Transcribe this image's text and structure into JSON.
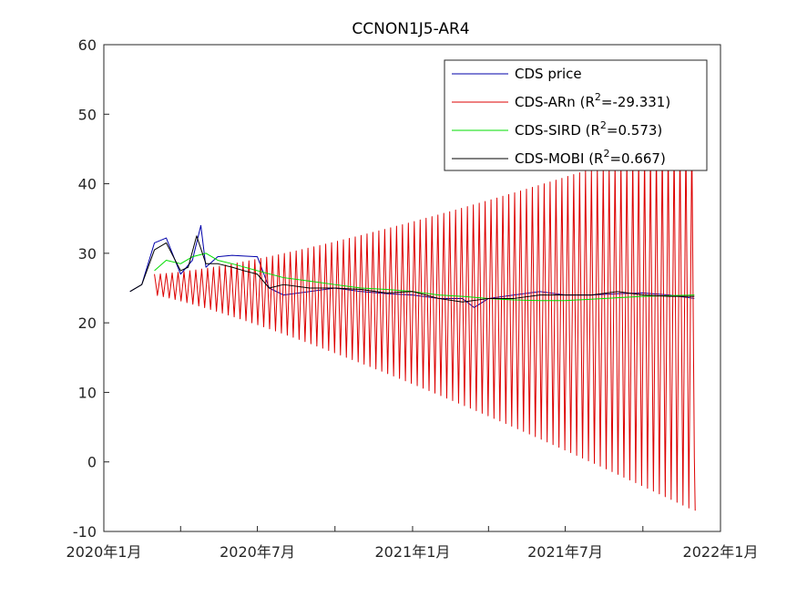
{
  "chart_data": {
    "type": "line",
    "title": "CCNON1J5-AR4",
    "xlabel": "",
    "ylabel": "",
    "xlim": [
      "2020-01-01",
      "2022-01-01"
    ],
    "ylim": [
      -10,
      60
    ],
    "x_ticks": [
      "2020-01-01",
      "2020-04-01",
      "2020-07-01",
      "2020-10-01",
      "2021-01-01",
      "2021-04-01",
      "2021-07-01",
      "2021-10-01",
      "2022-01-01"
    ],
    "x_tick_labels": [
      "2020年1月",
      "",
      "2020年7月",
      "",
      "2021年1月",
      "",
      "2021年7月",
      "",
      "2022年1月"
    ],
    "y_ticks": [
      -10,
      0,
      10,
      20,
      30,
      40,
      50,
      60
    ],
    "y_tick_labels": [
      "-10",
      "0",
      "10",
      "20",
      "30",
      "40",
      "50",
      "60"
    ],
    "legend_position": "top-right",
    "grid": false,
    "series": [
      {
        "name": "CDS price",
        "legend_main": "CDS price",
        "legend_r2": "",
        "legend_r2_value": "",
        "color": "#0000aa",
        "x": [
          "2020-02-01",
          "2020-02-15",
          "2020-03-01",
          "2020-03-15",
          "2020-04-01",
          "2020-04-15",
          "2020-04-25",
          "2020-05-01",
          "2020-05-15",
          "2020-06-01",
          "2020-06-15",
          "2020-07-01",
          "2020-07-15",
          "2020-08-01",
          "2020-09-01",
          "2020-10-01",
          "2020-11-01",
          "2020-12-01",
          "2021-01-01",
          "2021-02-01",
          "2021-03-01",
          "2021-03-15",
          "2021-04-01",
          "2021-05-01",
          "2021-06-01",
          "2021-07-01",
          "2021-08-01",
          "2021-09-01",
          "2021-10-01",
          "2021-11-01",
          "2021-12-01"
        ],
        "y": [
          24.5,
          25.5,
          31.5,
          32.2,
          27.0,
          29.0,
          34.0,
          28.0,
          29.5,
          29.7,
          29.6,
          29.5,
          25.0,
          24.0,
          24.5,
          25.0,
          24.5,
          24.2,
          24.0,
          23.5,
          23.5,
          22.2,
          23.5,
          24.0,
          24.5,
          24.0,
          24.0,
          24.2,
          24.3,
          24.0,
          23.5
        ]
      },
      {
        "name": "CDS-ARn",
        "legend_main": "CDS-ARn   (R",
        "legend_r2": "2",
        "legend_r2_value": "=-29.331)",
        "color": "#dd0000",
        "start": "2020-03-01",
        "end": "2021-12-01",
        "period_days": 7,
        "center_start": 25.5,
        "center_end": 20.0,
        "amplitude_start": 1.5,
        "amplitude_end": 27.0,
        "final_value": -7.0
      },
      {
        "name": "CDS-SIRD",
        "legend_main": "CDS-SIRD (R",
        "legend_r2": "2",
        "legend_r2_value": "=0.573)",
        "color": "#00dd00",
        "x": [
          "2020-03-01",
          "2020-03-15",
          "2020-04-01",
          "2020-04-15",
          "2020-05-01",
          "2020-05-15",
          "2020-06-01",
          "2020-07-01",
          "2020-08-01",
          "2020-09-01",
          "2020-10-01",
          "2020-11-01",
          "2020-12-01",
          "2021-01-01",
          "2021-02-01",
          "2021-03-01",
          "2021-04-01",
          "2021-05-01",
          "2021-06-01",
          "2021-07-01",
          "2021-08-01",
          "2021-09-01",
          "2021-10-01",
          "2021-11-01",
          "2021-12-01"
        ],
        "y": [
          27.5,
          29.0,
          28.5,
          29.5,
          30.0,
          29.0,
          28.5,
          27.5,
          26.5,
          26.0,
          25.5,
          25.0,
          24.8,
          24.5,
          24.0,
          23.8,
          23.5,
          23.3,
          23.2,
          23.2,
          23.4,
          23.6,
          23.8,
          23.9,
          24.0
        ]
      },
      {
        "name": "CDS-MOBI",
        "legend_main": "CDS-MOBI (R",
        "legend_r2": "2",
        "legend_r2_value": "=0.667)",
        "color": "#000000",
        "x": [
          "2020-02-01",
          "2020-02-15",
          "2020-03-01",
          "2020-03-15",
          "2020-04-01",
          "2020-04-10",
          "2020-04-20",
          "2020-05-01",
          "2020-05-15",
          "2020-06-01",
          "2020-06-15",
          "2020-07-01",
          "2020-07-15",
          "2020-08-01",
          "2020-09-01",
          "2020-10-01",
          "2020-11-01",
          "2020-12-01",
          "2021-01-01",
          "2021-02-01",
          "2021-03-01",
          "2021-04-01",
          "2021-05-01",
          "2021-06-01",
          "2021-07-01",
          "2021-08-01",
          "2021-09-01",
          "2021-10-01",
          "2021-11-01",
          "2021-12-01"
        ],
        "y": [
          24.5,
          25.5,
          30.5,
          31.5,
          27.5,
          28.0,
          32.5,
          28.5,
          28.5,
          28.0,
          27.5,
          27.0,
          25.0,
          25.5,
          25.0,
          25.0,
          24.8,
          24.3,
          24.5,
          23.5,
          23.0,
          23.5,
          23.5,
          24.0,
          24.0,
          24.0,
          24.5,
          24.0,
          23.8,
          23.8
        ]
      }
    ]
  }
}
